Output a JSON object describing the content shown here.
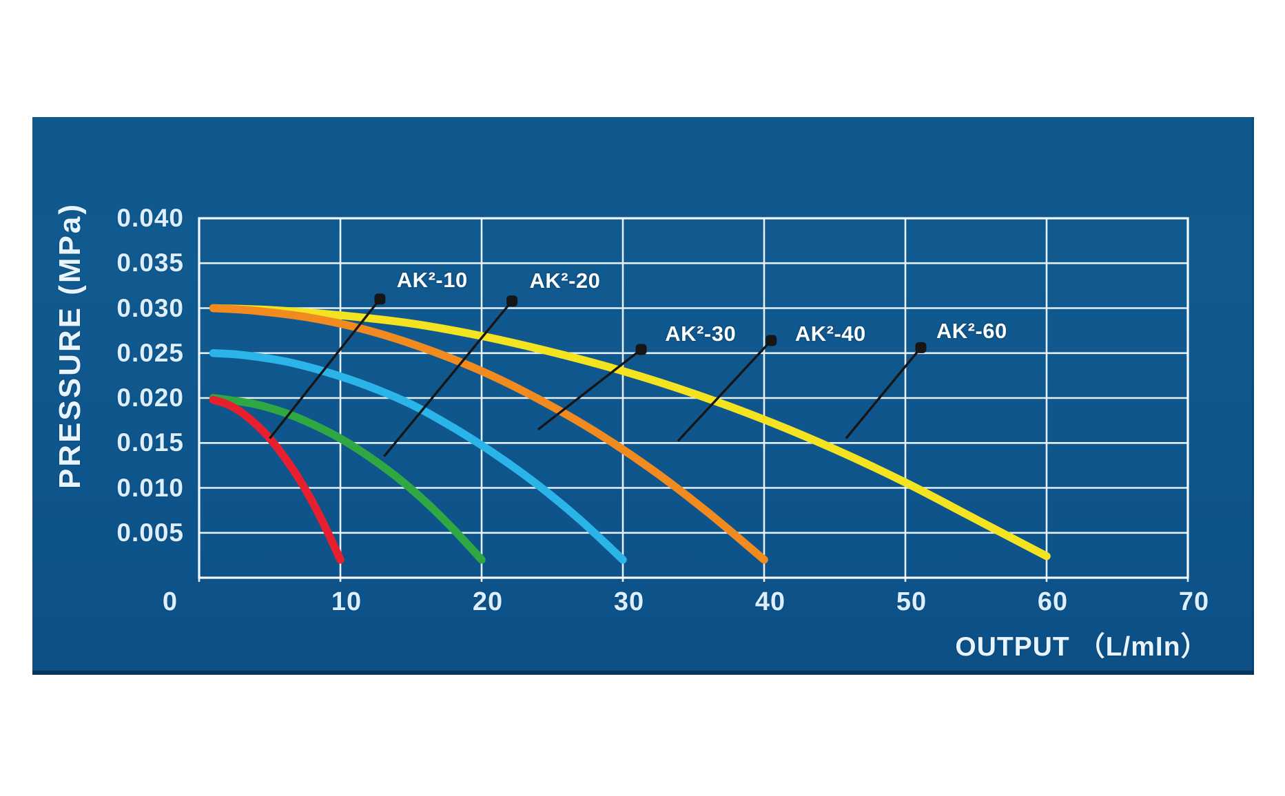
{
  "panel": {
    "background": "#0E578D",
    "grid_color": "#f4f9fd"
  },
  "chart_data": {
    "type": "line",
    "title": "",
    "xlabel": "OUTPUT （L/mIn）",
    "ylabel": "PRESSURE (MPa)",
    "xlim": [
      0,
      70
    ],
    "ylim": [
      0,
      0.04
    ],
    "grid": true,
    "x_tick_step": 10,
    "y_tick_step": 0.005,
    "x_ticks": [
      {
        "value": 0,
        "label": "0"
      },
      {
        "value": 10,
        "label": "10"
      },
      {
        "value": 20,
        "label": "20"
      },
      {
        "value": 30,
        "label": "30"
      },
      {
        "value": 40,
        "label": "40"
      },
      {
        "value": 50,
        "label": "50"
      },
      {
        "value": 60,
        "label": "60"
      },
      {
        "value": 70,
        "label": "70"
      }
    ],
    "y_ticks": [
      {
        "value": 0.04,
        "label": "0.040"
      },
      {
        "value": 0.035,
        "label": "0.035"
      },
      {
        "value": 0.03,
        "label": "0.030"
      },
      {
        "value": 0.025,
        "label": "0.025"
      },
      {
        "value": 0.02,
        "label": "0.020"
      },
      {
        "value": 0.015,
        "label": "0.015"
      },
      {
        "value": 0.01,
        "label": "0.010"
      },
      {
        "value": 0.005,
        "label": "0.005"
      }
    ],
    "leader_color": "#161616",
    "curve_label_color": "#ffffff",
    "series": [
      {
        "name": "AK²-10",
        "color": "#e6202e",
        "points": [
          [
            1,
            0.0198
          ],
          [
            2,
            0.0193
          ],
          [
            3,
            0.0184
          ],
          [
            4,
            0.0171
          ],
          [
            5,
            0.0155
          ],
          [
            6,
            0.0135
          ],
          [
            7,
            0.0112
          ],
          [
            8,
            0.0085
          ],
          [
            9,
            0.0054
          ],
          [
            10,
            0.002
          ]
        ],
        "label_center": [
          16.5,
          0.0331
        ],
        "dot": [
          12.8,
          0.031
        ],
        "leader_end": [
          5.0,
          0.0155
        ]
      },
      {
        "name": "AK²-20",
        "color": "#2fa844",
        "points": [
          [
            1,
            0.02
          ],
          [
            2,
            0.0198
          ],
          [
            4,
            0.0193
          ],
          [
            6,
            0.0184
          ],
          [
            8,
            0.0171
          ],
          [
            10,
            0.0155
          ],
          [
            12,
            0.0135
          ],
          [
            14,
            0.0112
          ],
          [
            16,
            0.0085
          ],
          [
            18,
            0.0054
          ],
          [
            20,
            0.002
          ]
        ],
        "label_center": [
          25.9,
          0.033
        ],
        "dot": [
          22.15,
          0.0308
        ],
        "leader_end": [
          13.1,
          0.0135
        ]
      },
      {
        "name": "AK²-30",
        "color": "#2ab4e8",
        "points": [
          [
            1,
            0.025
          ],
          [
            3,
            0.0248
          ],
          [
            6,
            0.0241
          ],
          [
            9,
            0.0229
          ],
          [
            12,
            0.0213
          ],
          [
            15,
            0.0193
          ],
          [
            18,
            0.0167
          ],
          [
            21,
            0.0137
          ],
          [
            24,
            0.0103
          ],
          [
            27,
            0.0064
          ],
          [
            30,
            0.002
          ]
        ],
        "label_center": [
          35.5,
          0.0271
        ],
        "dot": [
          31.3,
          0.0254
        ],
        "leader_end": [
          24.0,
          0.0165
        ]
      },
      {
        "name": "AK²-40",
        "color": "#f18b1f",
        "points": [
          [
            1,
            0.03
          ],
          [
            4,
            0.0297
          ],
          [
            8,
            0.0289
          ],
          [
            12,
            0.0275
          ],
          [
            16,
            0.0255
          ],
          [
            20,
            0.023
          ],
          [
            24,
            0.0199
          ],
          [
            28,
            0.0163
          ],
          [
            32,
            0.0121
          ],
          [
            36,
            0.0073
          ],
          [
            40,
            0.002
          ]
        ],
        "label_center": [
          44.7,
          0.0271
        ],
        "dot": [
          40.5,
          0.0264
        ],
        "leader_end": [
          33.9,
          0.0152
        ]
      },
      {
        "name": "AK²-60",
        "color": "#f3e320",
        "points": [
          [
            1,
            0.03
          ],
          [
            5,
            0.0298
          ],
          [
            10,
            0.0292
          ],
          [
            15,
            0.0283
          ],
          [
            20,
            0.0269
          ],
          [
            25,
            0.0251
          ],
          [
            30,
            0.023
          ],
          [
            35,
            0.0205
          ],
          [
            40,
            0.0176
          ],
          [
            45,
            0.0143
          ],
          [
            50,
            0.0106
          ],
          [
            55,
            0.0065
          ],
          [
            60,
            0.0024
          ]
        ],
        "label_center": [
          54.7,
          0.0274
        ],
        "dot": [
          51.1,
          0.0256
        ],
        "leader_end": [
          45.8,
          0.0155
        ]
      }
    ]
  }
}
